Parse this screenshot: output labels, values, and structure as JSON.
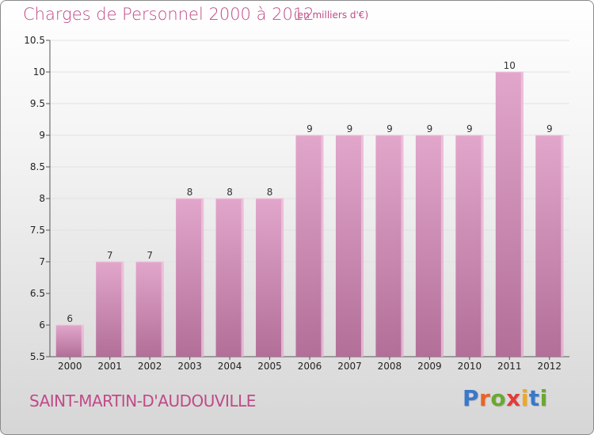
{
  "title": "Charges de Personnel 2000 à 2012",
  "subtitle": "(en milliers d'€)",
  "town": "SAINT-MARTIN-D'AUDOUVILLE",
  "logo": {
    "letters": [
      "P",
      "r",
      "o",
      "x",
      "i",
      "t",
      "i"
    ],
    "colors": [
      "#3a78c9",
      "#e8632a",
      "#6aa832",
      "#e23b3b",
      "#f2a81d",
      "#3a78c9",
      "#6aa832"
    ]
  },
  "colors": {
    "bar_top": "#e2a6cb",
    "bar_bottom": "#b26f98",
    "bar_highlight": "#f0c6de",
    "text": "#c04a88"
  },
  "chart_data": {
    "type": "bar",
    "title": "Charges de Personnel 2000 à 2012",
    "subtitle": "(en milliers d'€)",
    "categories": [
      "2000",
      "2001",
      "2002",
      "2003",
      "2004",
      "2005",
      "2006",
      "2007",
      "2008",
      "2009",
      "2010",
      "2011",
      "2012"
    ],
    "values": [
      6,
      7,
      7,
      8,
      8,
      8,
      9,
      9,
      9,
      9,
      9,
      10,
      9
    ],
    "data_labels": [
      "6",
      "7",
      "7",
      "8",
      "8",
      "8",
      "9",
      "9",
      "9",
      "9",
      "9",
      "10",
      "9"
    ],
    "ylim": [
      5.5,
      10.5
    ],
    "yticks": [
      "5.5",
      "6",
      "6.5",
      "7",
      "7.5",
      "8",
      "8.5",
      "9",
      "9.5",
      "10",
      "10.5"
    ],
    "grid": true,
    "xlabel": "",
    "ylabel": ""
  }
}
